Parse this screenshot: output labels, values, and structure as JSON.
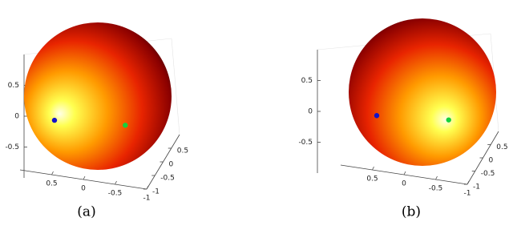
{
  "chart_data": [
    {
      "type": "scatter3d",
      "caption": "(a)",
      "xlim": [
        -1,
        1
      ],
      "ylim": [
        -1,
        1
      ],
      "zlim": [
        -1,
        1
      ],
      "xticks": [
        0.5,
        0,
        -0.5,
        -1
      ],
      "yticks": [
        0.5,
        0,
        -0.5,
        -1
      ],
      "zticks": [
        0.5,
        0,
        -0.5
      ],
      "series": [
        {
          "color": "#1414c8",
          "x": [
            0.8
          ],
          "y": [
            0.26
          ],
          "z": [
            -0.54
          ]
        },
        {
          "color": "#14d23c",
          "x": [
            -0.61
          ],
          "y": [
            -0.5
          ],
          "z": [
            -0.22
          ]
        }
      ]
    },
    {
      "type": "scatter3d",
      "caption": "(b)",
      "xlim": [
        -1,
        1
      ],
      "ylim": [
        -1,
        1
      ],
      "zlim": [
        -1,
        1
      ],
      "xticks": [
        0.5,
        0,
        -0.5,
        -1
      ],
      "yticks": [
        0.5,
        0,
        -0.5,
        -1
      ],
      "zticks": [
        0.5,
        0,
        -0.5
      ],
      "series": [
        {
          "color": "#1414c8",
          "x": [
            0.8
          ],
          "y": [
            0.13
          ],
          "z": [
            -0.47
          ]
        },
        {
          "color": "#14d23c",
          "x": [
            -0.59
          ],
          "y": [
            -0.5
          ],
          "z": [
            -0.2
          ]
        }
      ]
    }
  ]
}
